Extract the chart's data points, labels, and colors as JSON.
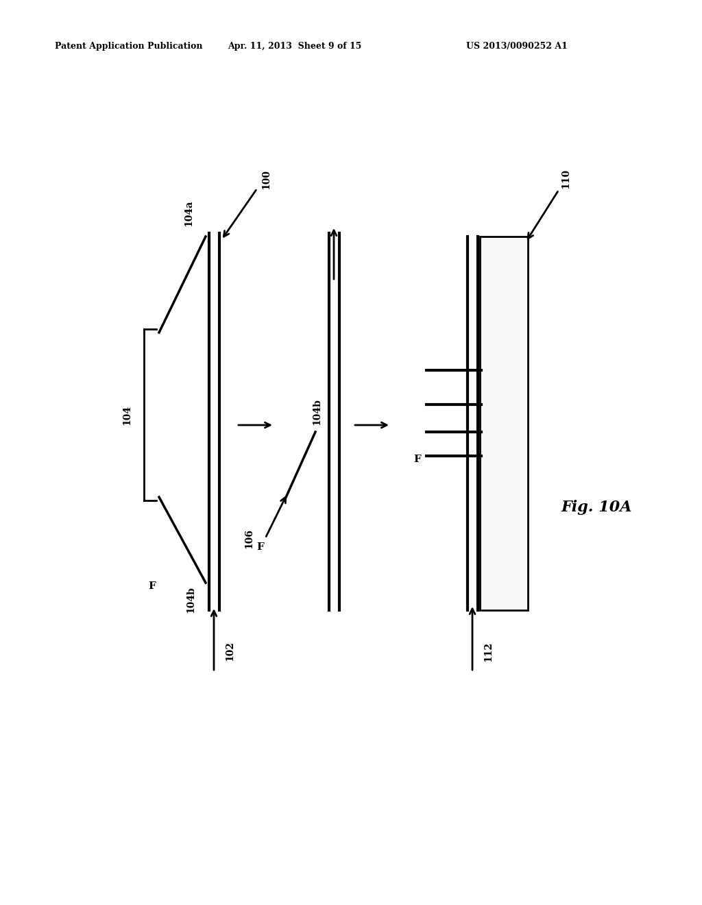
{
  "bg_color": "#ffffff",
  "lc": "#000000",
  "header_left": "Patent Application Publication",
  "header_center": "Apr. 11, 2013  Sheet 9 of 15",
  "header_right": "US 2013/0090252 A1",
  "fig_label": "Fig. 10A",
  "lw": 2.0,
  "tlw": 3.0,
  "arrow_ms": 14
}
